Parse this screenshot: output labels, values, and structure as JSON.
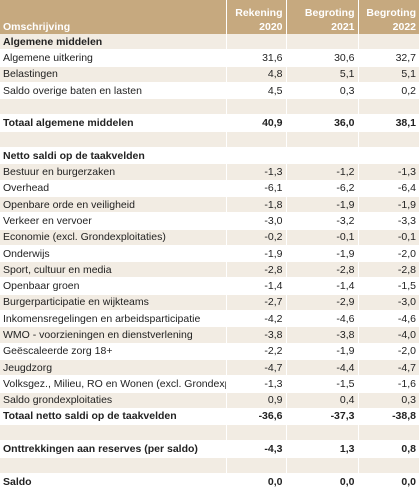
{
  "table": {
    "header": [
      "Omschrijving",
      [
        "Rekening",
        "2020"
      ],
      [
        "Begroting",
        "2021"
      ],
      [
        "Begroting",
        "2022"
      ]
    ],
    "rows": [
      [
        "Algemene middelen"
      ],
      [
        "Algemene uitkering",
        "31,6",
        "30,6",
        "32,7"
      ],
      [
        "Belastingen",
        "4,8",
        "5,1",
        "5,1"
      ],
      [
        "Saldo overige baten en lasten",
        "4,5",
        "0,3",
        "0,2"
      ],
      null,
      [
        "Totaal algemene middelen",
        "40,9",
        "36,0",
        "38,1"
      ],
      null,
      [
        "Netto saldi op de taakvelden"
      ],
      [
        "Bestuur en burgerzaken",
        "-1,3",
        "-1,2",
        "-1,3"
      ],
      [
        "Overhead",
        "-6,1",
        "-6,2",
        "-6,4"
      ],
      [
        "Openbare orde en veiligheid",
        "-1,8",
        "-1,9",
        "-1,9"
      ],
      [
        "Verkeer en vervoer",
        "-3,0",
        "-3,2",
        "-3,3"
      ],
      [
        "Economie (excl. Grondexploitaties)",
        "-0,2",
        "-0,1",
        "-0,1"
      ],
      [
        "Onderwijs",
        "-1,9",
        "-1,9",
        "-2,0"
      ],
      [
        "Sport, cultuur en media",
        "-2,8",
        "-2,8",
        "-2,8"
      ],
      [
        "Openbaar groen",
        "-1,4",
        "-1,4",
        "-1,5"
      ],
      [
        "Burgerparticipatie en wijkteams",
        "-2,7",
        "-2,9",
        "-3,0"
      ],
      [
        "Inkomensregelingen en arbeidsparticipatie",
        "-4,2",
        "-4,6",
        "-4,6"
      ],
      [
        "WMO - voorzieningen en dienstverlening",
        "-3,8",
        "-3,8",
        "-4,0"
      ],
      [
        "Geëscaleerde zorg 18+",
        "-2,2",
        "-1,9",
        "-2,0"
      ],
      [
        "Jeugdzorg",
        "-4,7",
        "-4,4",
        "-4,7"
      ],
      [
        "Volksgez., Milieu, RO en Wonen (excl. Grondexpl.)",
        "-1,3",
        "-1,5",
        "-1,6"
      ],
      [
        "Saldo grondexploitaties",
        "0,9",
        "0,4",
        "0,3"
      ],
      [
        "Totaal netto saldi op de taakvelden",
        "-36,6",
        "-37,3",
        "-38,8"
      ],
      null,
      [
        "Onttrekkingen aan reserves (per saldo)",
        "-4,3",
        "1,3",
        "0,8"
      ],
      null,
      [
        "Saldo",
        "0,0",
        "0,0",
        "0,0"
      ]
    ]
  }
}
